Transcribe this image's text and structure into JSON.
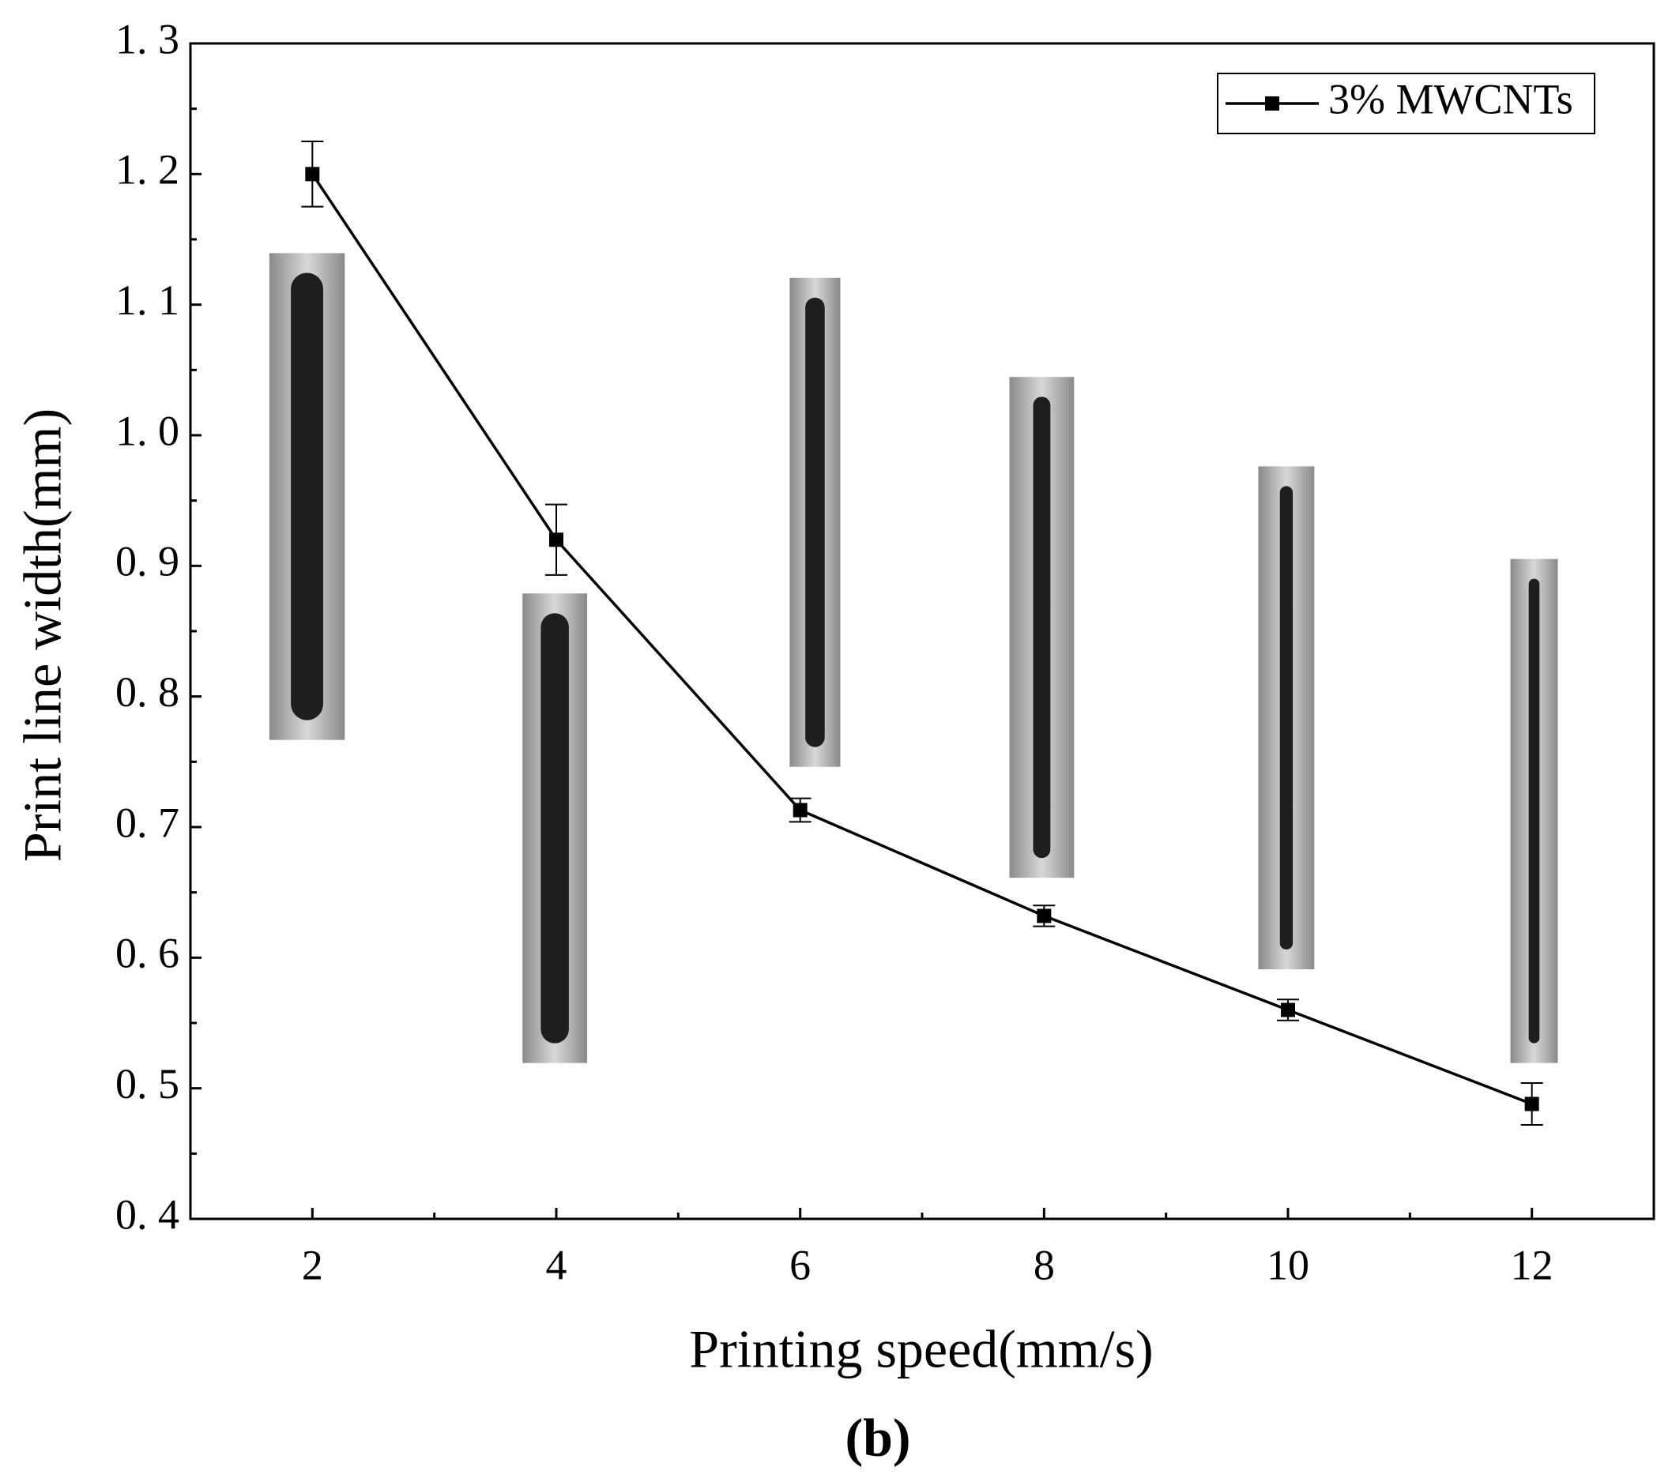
{
  "chart_data": {
    "type": "line",
    "x_label": "Printing speed(mm/s)",
    "y_label": "Print line width(mm)",
    "caption": "(b)",
    "x": [
      2,
      4,
      6,
      8,
      10,
      12
    ],
    "series": [
      {
        "name": "3% MWCNTs",
        "color": "#000000",
        "values": [
          1.2,
          0.92,
          0.713,
          0.632,
          0.56,
          0.488
        ],
        "errors": [
          0.025,
          0.027,
          0.009,
          0.008,
          0.008,
          0.016
        ]
      }
    ],
    "xlim": [
      1,
      13
    ],
    "xticks": [
      2,
      4,
      6,
      8,
      10,
      12
    ],
    "ylim": [
      0.4,
      1.3
    ],
    "yticks": [
      {
        "value": 0.4,
        "label": "0. 4"
      },
      {
        "value": 0.5,
        "label": "0. 5"
      },
      {
        "value": 0.6,
        "label": "0. 6"
      },
      {
        "value": 0.7,
        "label": "0. 7"
      },
      {
        "value": 0.8,
        "label": "0. 8"
      },
      {
        "value": 0.9,
        "label": "0. 9"
      },
      {
        "value": 1.0,
        "label": "1. 0"
      },
      {
        "value": 1.1,
        "label": "1. 1"
      },
      {
        "value": 1.2,
        "label": "1. 2"
      },
      {
        "value": 1.3,
        "label": "1. 3"
      }
    ],
    "legend": "upper right"
  }
}
